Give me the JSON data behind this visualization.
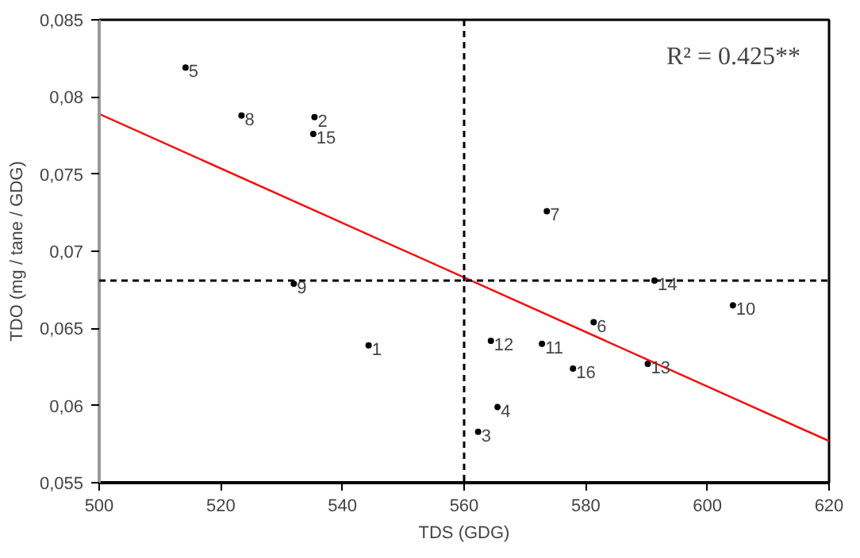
{
  "chart_data": {
    "type": "scatter",
    "xlabel": "TDS (GDG)",
    "ylabel": "TDO (mg / tane / GDG)",
    "series": [
      {
        "color": "#000000",
        "marker": "circle",
        "x": [
          544.3,
          535.4,
          562.3,
          565.5,
          514.2,
          581.3,
          573.6,
          523.4,
          532,
          604.2,
          572.8,
          564.4,
          590.2,
          591.3,
          535.2,
          577.9
        ],
        "values": [
          0.0639,
          0.0787,
          0.0583,
          0.0599,
          0.0819,
          0.0654,
          0.0726,
          0.0788,
          0.0679,
          0.0665,
          0.064,
          0.0642,
          0.0627,
          0.0681,
          0.0776,
          0.0624
        ]
      },
      {
        "type": "line",
        "color": "#ff0000",
        "x": [
          500,
          620
        ],
        "values": [
          0.0789,
          0.0577
        ]
      }
    ],
    "annotations": [
      {
        "text": "1",
        "x": 544.3,
        "y": 0.0639
      },
      {
        "text": "2",
        "x": 535.4,
        "y": 0.0787
      },
      {
        "text": "3",
        "x": 562.3,
        "y": 0.0583
      },
      {
        "text": "4",
        "x": 565.5,
        "y": 0.0599
      },
      {
        "text": "5",
        "x": 514.2,
        "y": 0.0819
      },
      {
        "text": "6",
        "x": 581.3,
        "y": 0.0654
      },
      {
        "text": "7",
        "x": 573.6,
        "y": 0.0726
      },
      {
        "text": "8",
        "x": 523.4,
        "y": 0.0788
      },
      {
        "text": "9",
        "x": 532,
        "y": 0.0679
      },
      {
        "text": "10",
        "x": 604.2,
        "y": 0.0665
      },
      {
        "text": "11",
        "x": 572.8,
        "y": 0.064
      },
      {
        "text": "12",
        "x": 564.4,
        "y": 0.0642
      },
      {
        "text": "13",
        "x": 590.2,
        "y": 0.0627
      },
      {
        "text": "14",
        "x": 591.3,
        "y": 0.0681
      },
      {
        "text": "15",
        "x": 535.2,
        "y": 0.0776
      },
      {
        "text": "16",
        "x": 577.9,
        "y": 0.0624
      },
      "R² = 0.425**"
    ],
    "ref_lines": [
      {
        "axis": "x",
        "value": 560,
        "color": "#000000",
        "line_style": "dashed"
      },
      {
        "axis": "y",
        "value": 0.0681,
        "color": "#000000",
        "line_style": "dashed"
      }
    ],
    "xlim": [
      500,
      620
    ],
    "xticks": [
      500,
      520,
      540,
      560,
      580,
      600,
      620
    ],
    "ylim": [
      0.055,
      0.085
    ],
    "yticks": [
      {
        "value": 0.055,
        "label": "0,055"
      },
      {
        "value": 0.06,
        "label": "0,06"
      },
      {
        "value": 0.065,
        "label": "0,065"
      },
      {
        "value": 0.07,
        "label": "0,07"
      },
      {
        "value": 0.075,
        "label": "0,075"
      },
      {
        "value": 0.08,
        "label": "0,08"
      },
      {
        "value": 0.085,
        "label": "0,085"
      }
    ],
    "grid": false
  }
}
